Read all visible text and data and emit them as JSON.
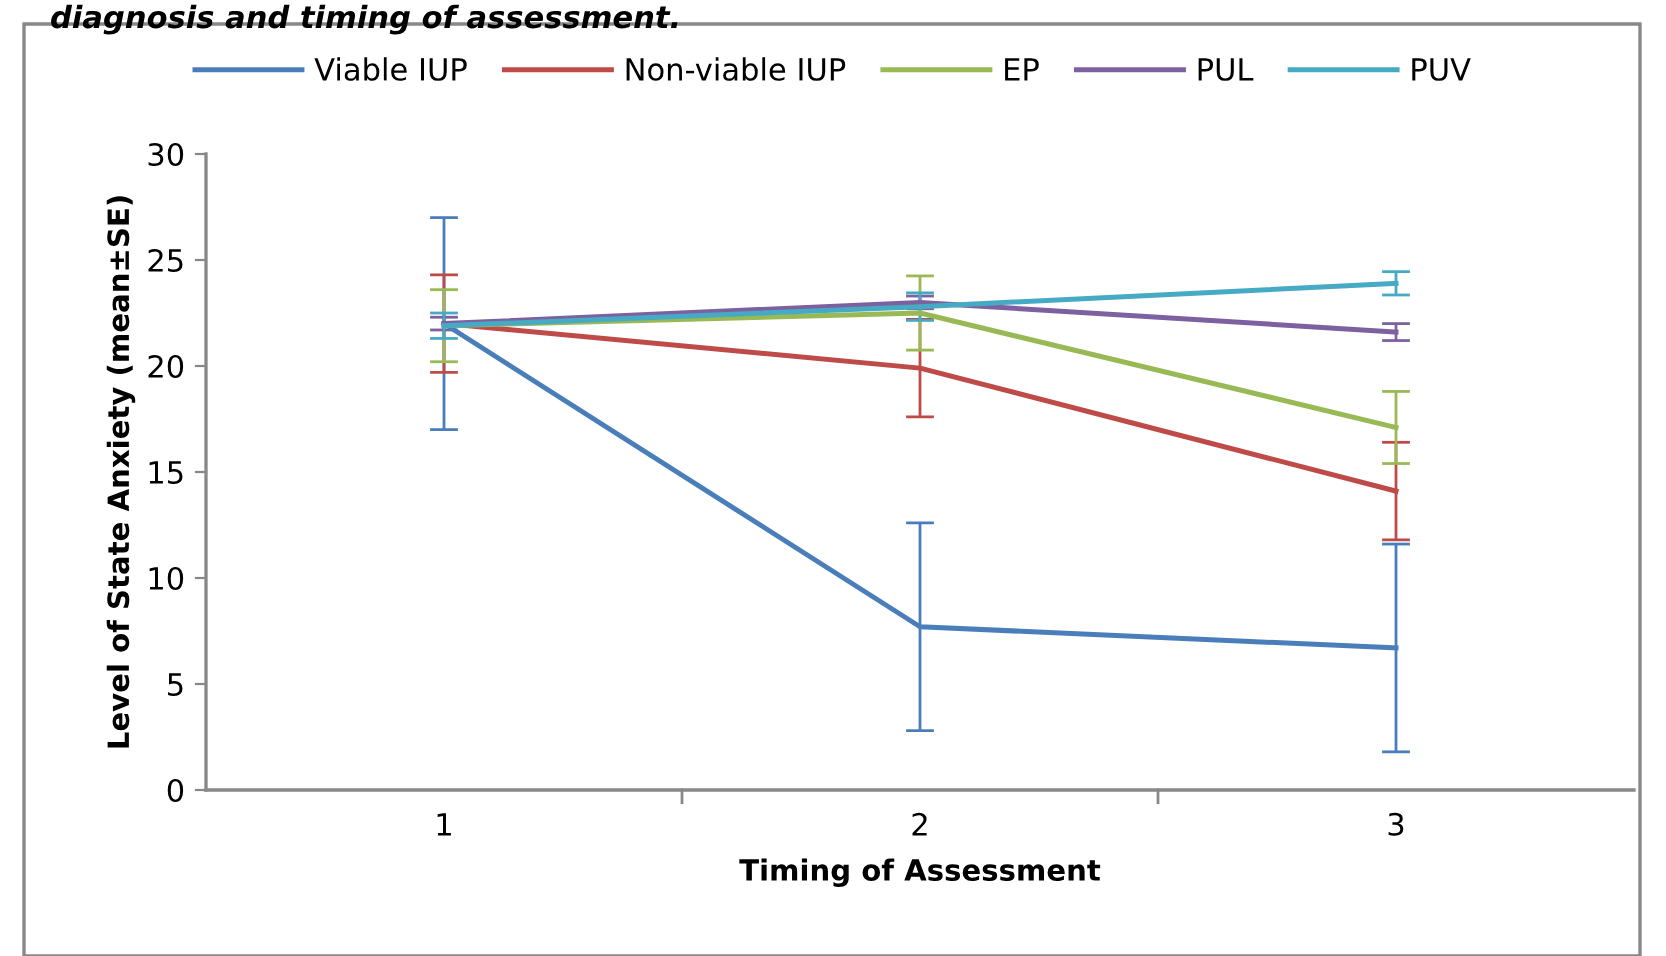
{
  "chart_data": {
    "type": "line",
    "title": "diagnosis and timing of assessment.",
    "xlabel": "Timing of Assessment",
    "ylabel": "Level of State Anxiety (mean±SE)",
    "categories": [
      "1",
      "2",
      "3"
    ],
    "series": [
      {
        "name": "Viable IUP",
        "color": "#4a7ebb",
        "values": [
          22.0,
          7.7,
          6.7
        ],
        "errors": [
          5.0,
          4.9,
          4.9
        ]
      },
      {
        "name": "Non-viable IUP",
        "color": "#be4b48",
        "values": [
          22.0,
          19.9,
          14.1
        ],
        "errors": [
          2.3,
          2.3,
          2.3
        ]
      },
      {
        "name": "EP",
        "color": "#98b954",
        "values": [
          21.9,
          22.5,
          17.1
        ],
        "errors": [
          1.7,
          1.75,
          1.7
        ]
      },
      {
        "name": "PUL",
        "color": "#7d60a0",
        "values": [
          22.0,
          23.0,
          21.6
        ],
        "errors": [
          0.3,
          0.3,
          0.4
        ]
      },
      {
        "name": "PUV",
        "color": "#46aac5",
        "values": [
          21.9,
          22.8,
          23.9
        ],
        "errors": [
          0.6,
          0.65,
          0.55
        ]
      }
    ],
    "ylim": [
      0,
      30
    ],
    "yticks": [
      0,
      5,
      10,
      15,
      20,
      25,
      30
    ],
    "grid": false,
    "legend": "top",
    "marker": "none",
    "line_style": "solid"
  }
}
